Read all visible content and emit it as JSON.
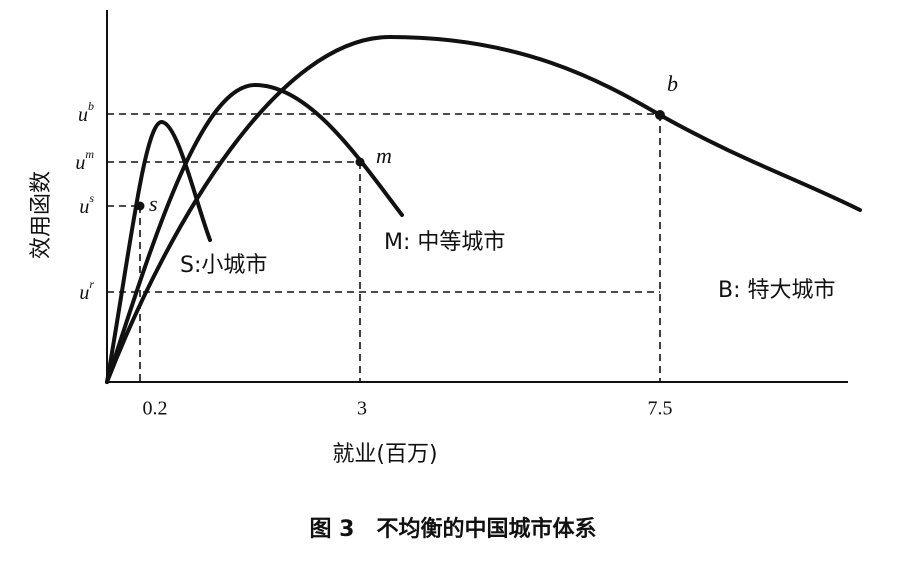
{
  "axes": {
    "x_title": "就业(百万)",
    "y_title": "效用函数",
    "x_ticks": [
      "0.2",
      "3",
      "7.5"
    ],
    "y_labels": [
      {
        "base": "u",
        "sup": "b"
      },
      {
        "base": "u",
        "sup": "m"
      },
      {
        "base": "u",
        "sup": "s"
      },
      {
        "base": "u",
        "sup": "r"
      }
    ]
  },
  "curves": [
    {
      "label": "S:小城市",
      "point": "s"
    },
    {
      "label": "M: 中等城市",
      "point": "m"
    },
    {
      "label": "B: 特大城市",
      "point": "b"
    }
  ],
  "caption": "图 3　不均衡的中国城市体系"
}
